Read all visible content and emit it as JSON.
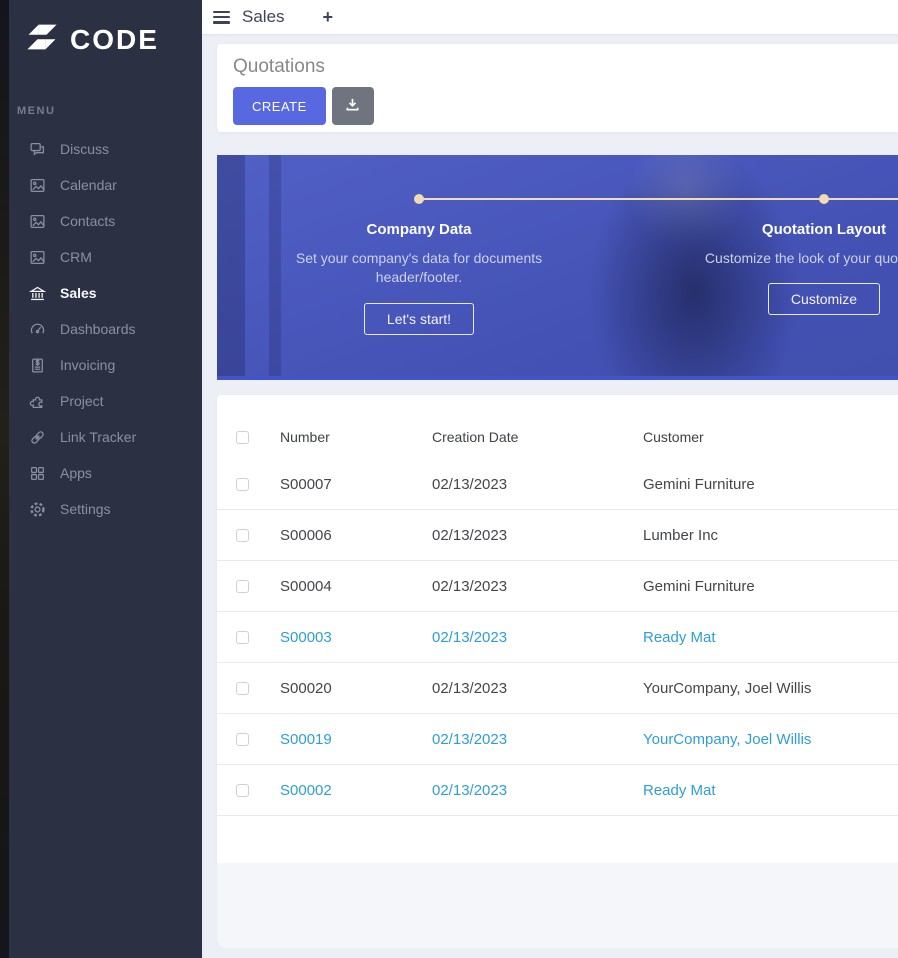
{
  "sidebar": {
    "logo_text": "CODE",
    "menu_label": "MENU",
    "items": [
      {
        "label": "Discuss",
        "icon": "discuss-chat-icon",
        "active": false
      },
      {
        "label": "Calendar",
        "icon": "image-placeholder-icon",
        "active": false
      },
      {
        "label": "Contacts",
        "icon": "image-placeholder-icon",
        "active": false
      },
      {
        "label": "CRM",
        "icon": "image-placeholder-icon",
        "active": false
      },
      {
        "label": "Sales",
        "icon": "bank-icon",
        "active": true
      },
      {
        "label": "Dashboards",
        "icon": "gauge-icon",
        "active": false
      },
      {
        "label": "Invoicing",
        "icon": "invoice-icon",
        "active": false
      },
      {
        "label": "Project",
        "icon": "puzzle-icon",
        "active": false
      },
      {
        "label": "Link Tracker",
        "icon": "link-icon",
        "active": false
      },
      {
        "label": "Apps",
        "icon": "apps-grid-icon",
        "active": false
      },
      {
        "label": "Settings",
        "icon": "gear-icon",
        "active": false
      }
    ]
  },
  "topbar": {
    "title": "Sales",
    "add_tab_label": "+"
  },
  "page": {
    "title": "Quotations",
    "create_label": "CREATE"
  },
  "onboarding": {
    "steps": [
      {
        "title": "Company Data",
        "description": "Set your company's data for documents header/footer.",
        "button": "Let's start!"
      },
      {
        "title": "Quotation Layout",
        "description": "Customize the look of your quotations.",
        "button": "Customize"
      }
    ],
    "accent_color": "#f1dcb2"
  },
  "table": {
    "columns": [
      "Number",
      "Creation Date",
      "Customer"
    ],
    "rows": [
      {
        "number": "S00007",
        "date": "02/13/2023",
        "customer": "Gemini Furniture",
        "highlight": false
      },
      {
        "number": "S00006",
        "date": "02/13/2023",
        "customer": "Lumber Inc",
        "highlight": false
      },
      {
        "number": "S00004",
        "date": "02/13/2023",
        "customer": "Gemini Furniture",
        "highlight": false
      },
      {
        "number": "S00003",
        "date": "02/13/2023",
        "customer": "Ready Mat",
        "highlight": true
      },
      {
        "number": "S00020",
        "date": "02/13/2023",
        "customer": "YourCompany, Joel Willis",
        "highlight": false
      },
      {
        "number": "S00019",
        "date": "02/13/2023",
        "customer": "YourCompany, Joel Willis",
        "highlight": true
      },
      {
        "number": "S00002",
        "date": "02/13/2023",
        "customer": "Ready Mat",
        "highlight": true
      }
    ]
  },
  "colors": {
    "sidebar_bg": "#2b3043",
    "primary_button": "#5868e0",
    "secondary_button": "#70747f",
    "banner_blue": "#4351b4",
    "highlight_row": "#2d9fd3"
  }
}
